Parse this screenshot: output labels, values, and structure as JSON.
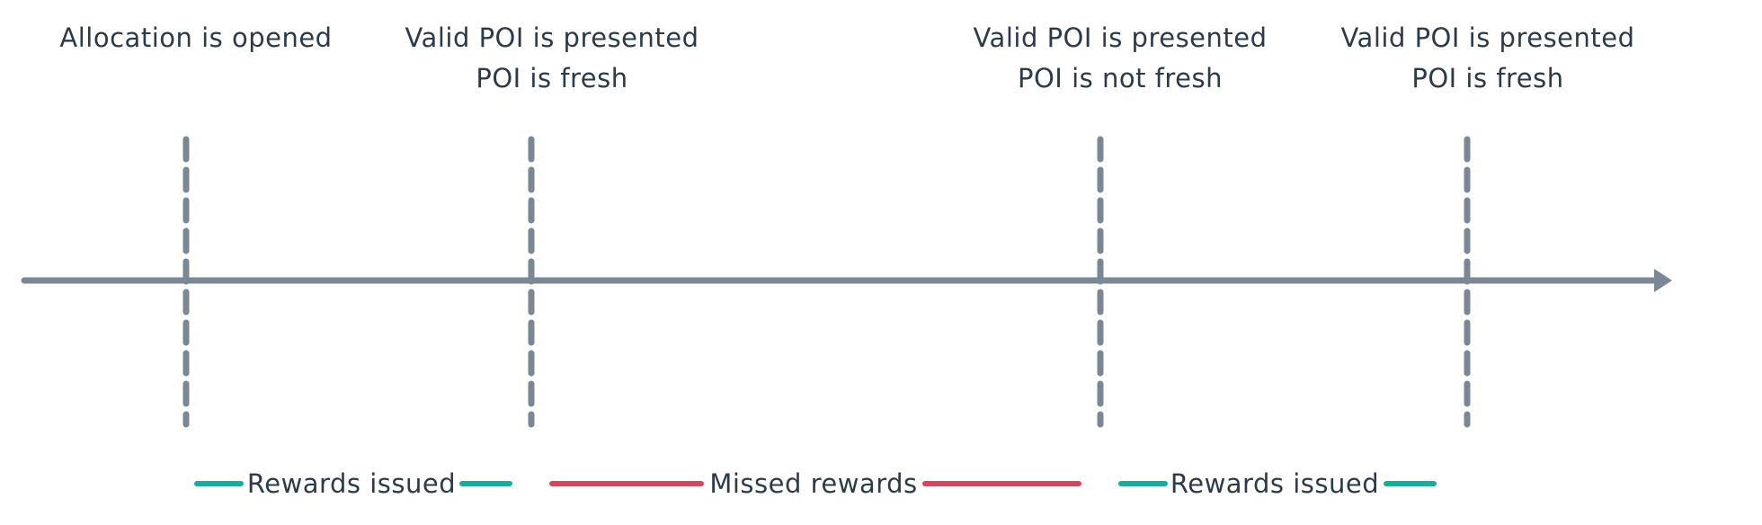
{
  "events": [
    {
      "lines": [
        "Allocation is opened"
      ]
    },
    {
      "lines": [
        "Valid POI is presented",
        "POI is fresh"
      ]
    },
    {
      "lines": [
        "Valid POI is presented",
        "POI is not fresh"
      ]
    },
    {
      "lines": [
        "Valid POI is presented",
        "POI is fresh"
      ]
    }
  ],
  "segments": [
    {
      "label": "Rewards issued",
      "status": "issued"
    },
    {
      "label": "Missed rewards",
      "status": "missed"
    },
    {
      "label": "Rewards issued",
      "status": "issued"
    }
  ],
  "colors": {
    "axis": "#7b8794",
    "issued": "#1aab9b",
    "missed": "#cf4a5e",
    "text": "#2c3a4a"
  }
}
